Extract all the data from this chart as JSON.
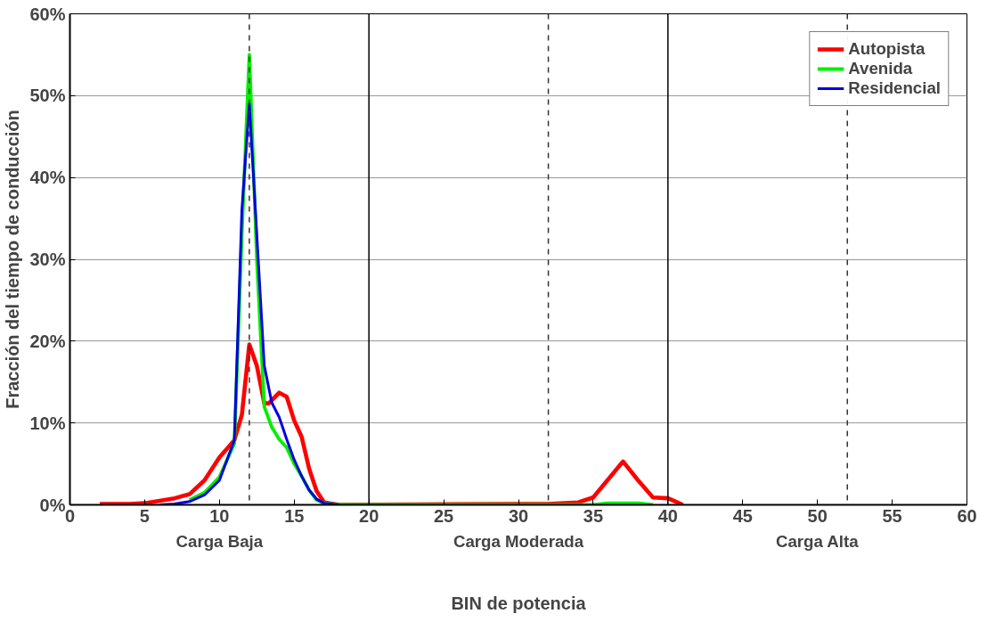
{
  "chart_data": {
    "type": "line",
    "xlabel": "BIN de potencia",
    "ylabel": "Fracción del tiempo de conducción",
    "xlim": [
      0,
      60
    ],
    "xticks": [
      0,
      5,
      10,
      15,
      20,
      25,
      30,
      35,
      40,
      45,
      50,
      55,
      60
    ],
    "ylim": [
      0,
      60
    ],
    "yticks": [
      {
        "value": 0,
        "label": "0%"
      },
      {
        "value": 10,
        "label": "10%"
      },
      {
        "value": 20,
        "label": "20%"
      },
      {
        "value": 30,
        "label": "30%"
      },
      {
        "value": 40,
        "label": "40%"
      },
      {
        "value": 50,
        "label": "50%"
      },
      {
        "value": 60,
        "label": "60%"
      }
    ],
    "grid": "y",
    "legend": "top right",
    "marker": "none",
    "line_style": "solid",
    "series": [
      {
        "name": "Autopista",
        "color": "#ff0000",
        "x": [
          2,
          3,
          4,
          5,
          6,
          7,
          8,
          9,
          10,
          11,
          11.5,
          12,
          12.5,
          13,
          13.3,
          14,
          14.5,
          15,
          15.5,
          16,
          16.5,
          17,
          18,
          30,
          32,
          34,
          35,
          36,
          37,
          38,
          39,
          40,
          41
        ],
        "values": [
          0.1,
          0.1,
          0.1,
          0.2,
          0.5,
          0.8,
          1.3,
          3.0,
          5.8,
          7.9,
          11,
          19.6,
          17,
          12.4,
          12.4,
          13.7,
          13.2,
          10.3,
          8.3,
          4.4,
          1.7,
          0.3,
          0,
          0.1,
          0.1,
          0.3,
          0.9,
          3.1,
          5.3,
          3.0,
          0.9,
          0.8,
          0
        ]
      },
      {
        "name": "Avenida",
        "color": "#00ee00",
        "x": [
          8,
          9,
          10,
          11,
          11.5,
          12,
          12.5,
          13,
          13.5,
          14,
          14.5,
          15,
          15.5,
          16,
          16.5,
          17,
          18,
          35,
          36,
          37,
          38,
          39
        ],
        "values": [
          0.6,
          1.5,
          3.4,
          7.5,
          33,
          55,
          30,
          12,
          9.5,
          8,
          7,
          5,
          3.5,
          1.8,
          0.6,
          0.2,
          0,
          0,
          0.2,
          0.2,
          0.2,
          0
        ]
      },
      {
        "name": "Residencial",
        "color": "#0000dd",
        "x": [
          6,
          7,
          8,
          9,
          10,
          11,
          11.5,
          12,
          12.5,
          13,
          13.5,
          14,
          14.5,
          15,
          15.5,
          16,
          16.5,
          17,
          18
        ],
        "values": [
          0,
          0.1,
          0.4,
          1.2,
          3.0,
          7.9,
          36,
          49,
          33,
          17,
          12.5,
          10.7,
          8,
          5.5,
          3.5,
          1.8,
          0.7,
          0.2,
          0
        ]
      }
    ],
    "ref_lines": [
      {
        "axis": "x",
        "value": 20,
        "color": "#000000",
        "line_style": "solid"
      },
      {
        "axis": "x",
        "value": 40,
        "color": "#000000",
        "line_style": "solid"
      },
      {
        "axis": "x",
        "value": 12,
        "color": "#333333",
        "line_style": "dashed"
      },
      {
        "axis": "x",
        "value": 32,
        "color": "#333333",
        "line_style": "dashed"
      },
      {
        "axis": "x",
        "value": 52,
        "color": "#333333",
        "line_style": "dashed"
      }
    ],
    "annotations": [
      "Carga Baja",
      "Carga Moderada",
      "Carga Alta"
    ]
  }
}
